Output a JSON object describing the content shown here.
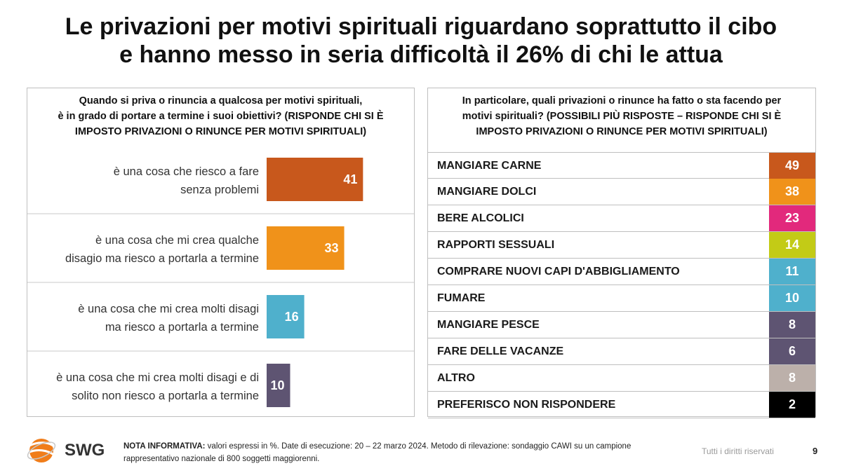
{
  "title": {
    "line1": "Le privazioni per motivi spirituali riguardano soprattutto il cibo",
    "line2": "e hanno messo in seria difficoltà il 26% di chi le attua"
  },
  "left_panel": {
    "question_lines": [
      "Quando si priva o rinuncia a qualcosa per motivi spirituali,",
      "è in grado di portare a termine i suoi obiettivi? (RISPONDE CHI SI È",
      "IMPOSTO PRIVAZIONI O RINUNCE PER MOTIVI SPIRITUALI)"
    ]
  },
  "right_panel": {
    "question_lines": [
      "In particolare, quali privazioni o rinunce ha fatto o sta facendo per",
      "motivi spirituali? (POSSIBILI PIÙ RISPOSTE – RISPONDE CHI SI È",
      "IMPOSTO PRIVAZIONI O RINUNCE PER MOTIVI SPIRITUALI)"
    ]
  },
  "chart_data": [
    {
      "type": "bar",
      "orientation": "horizontal",
      "categories": [
        [
          "è una cosa che riesco a fare",
          "senza problemi"
        ],
        [
          "è una cosa che mi crea qualche",
          "disagio ma riesco a portarla a termine"
        ],
        [
          "è una cosa che mi crea molti disagi",
          "ma riesco a portarla a termine"
        ],
        [
          "è una cosa che mi crea molti disagi e di",
          "solito non riesco a portarla a termine"
        ]
      ],
      "values": [
        41,
        33,
        16,
        10
      ],
      "colors": [
        "#c8581c",
        "#f0921a",
        "#4fb0cc",
        "#5e5472"
      ],
      "unit": "%"
    },
    {
      "type": "table",
      "categories": [
        "MANGIARE CARNE",
        "MANGIARE DOLCI",
        "BERE ALCOLICI",
        "RAPPORTI SESSUALI",
        "COMPRARE NUOVI CAPI D'ABBIGLIAMENTO",
        "FUMARE",
        "MANGIARE PESCE",
        "FARE DELLE VACANZE",
        "ALTRO",
        "PREFERISCO NON RISPONDERE"
      ],
      "values": [
        49,
        38,
        23,
        14,
        11,
        10,
        8,
        6,
        8,
        2
      ],
      "colors": [
        "#c8581c",
        "#f0921a",
        "#e2297c",
        "#c3cb16",
        "#4fb0cc",
        "#4fb0cc",
        "#5e5472",
        "#5e5472",
        "#bcb0aa",
        "#000000"
      ],
      "unit": "%"
    }
  ],
  "footer": {
    "logo_text": "SWG",
    "note_label": "NOTA INFORMATIVA:",
    "note_text": " valori espressi in %. Date di esecuzione: 20 – 22 marzo 2024. Metodo di rilevazione: sondaggio CAWI su un campione rappresentativo nazionale di 800 soggetti maggiorenni.",
    "rights": "Tutti i diritti riservati",
    "page": "9"
  }
}
